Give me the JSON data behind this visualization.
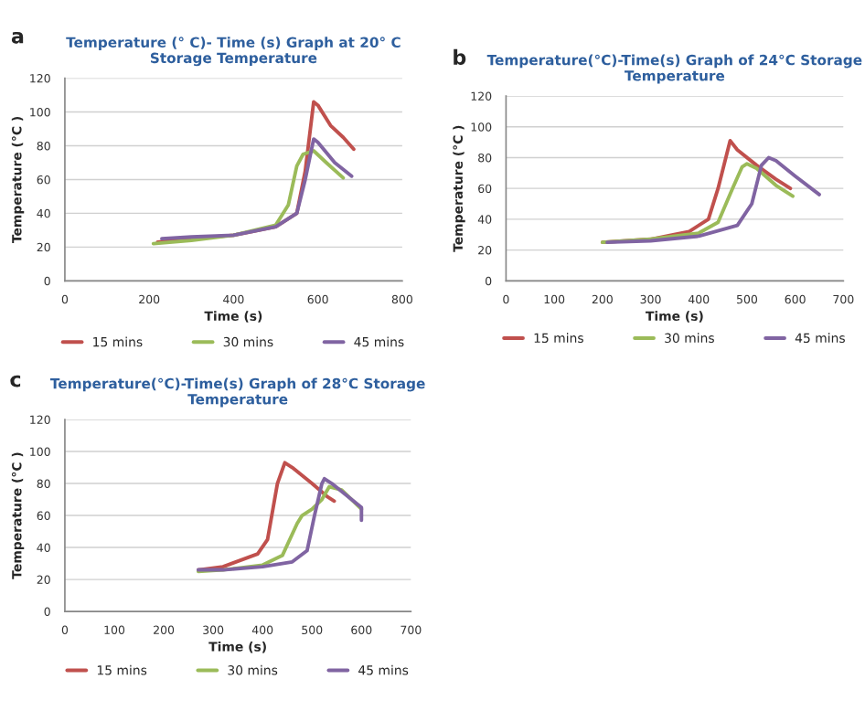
{
  "chart_data": [
    {
      "type": "line",
      "title": "Temperature (° C)- Time (s) Graph at 20° C\nStorage Temperature",
      "xlabel": "Time (s)",
      "ylabel": "Temperature (°C )",
      "annotations": [
        "a"
      ],
      "xlim": [
        0,
        800
      ],
      "xticks": [
        0,
        200,
        400,
        600,
        800
      ],
      "ylim": [
        0,
        120
      ],
      "yticks": [
        0,
        20,
        40,
        60,
        80,
        100,
        120
      ],
      "grid": "y",
      "legend": "bottom",
      "marker": "none",
      "line_style": "solid",
      "series": [
        {
          "name": "15 mins",
          "color": "#c0504d",
          "x": [
            220,
            300,
            400,
            500,
            550,
            570,
            590,
            600,
            630,
            660,
            685
          ],
          "values": [
            23,
            25,
            27,
            32,
            40,
            65,
            106,
            104,
            92,
            85,
            78
          ]
        },
        {
          "name": "30 mins",
          "color": "#9bbb59",
          "x": [
            210,
            300,
            400,
            500,
            530,
            550,
            565,
            590,
            620,
            660
          ],
          "values": [
            22,
            24,
            27,
            33,
            45,
            68,
            75,
            77,
            70,
            61
          ]
        },
        {
          "name": "45 mins",
          "color": "#8064a2",
          "x": [
            230,
            300,
            400,
            500,
            550,
            570,
            590,
            600,
            640,
            680
          ],
          "values": [
            25,
            26,
            27,
            32,
            40,
            60,
            84,
            82,
            70,
            62
          ]
        }
      ]
    },
    {
      "type": "line",
      "title": "Temperature(°C)-Time(s) Graph of 24°C Storage\nTemperature",
      "xlabel": "Time (s)",
      "ylabel": "Temperature (°C )",
      "annotations": [
        "b"
      ],
      "xlim": [
        0,
        700
      ],
      "xticks": [
        0,
        100,
        200,
        300,
        400,
        500,
        600,
        700
      ],
      "ylim": [
        0,
        120
      ],
      "yticks": [
        0,
        20,
        40,
        60,
        80,
        100,
        120
      ],
      "grid": "y",
      "legend": "bottom",
      "marker": "none",
      "line_style": "solid",
      "series": [
        {
          "name": "15 mins",
          "color": "#c0504d",
          "x": [
            200,
            300,
            380,
            420,
            440,
            465,
            480,
            520,
            560,
            590
          ],
          "values": [
            25,
            27,
            32,
            40,
            60,
            91,
            85,
            75,
            66,
            60
          ]
        },
        {
          "name": "30 mins",
          "color": "#9bbb59",
          "x": [
            200,
            300,
            400,
            440,
            470,
            490,
            500,
            520,
            560,
            595
          ],
          "values": [
            25,
            27,
            31,
            38,
            60,
            74,
            76,
            73,
            62,
            55
          ]
        },
        {
          "name": "45 mins",
          "color": "#8064a2",
          "x": [
            210,
            300,
            400,
            480,
            510,
            530,
            545,
            560,
            600,
            650
          ],
          "values": [
            25,
            26,
            29,
            36,
            50,
            75,
            80,
            78,
            68,
            56
          ]
        }
      ]
    },
    {
      "type": "line",
      "title": "Temperature(°C)-Time(s) Graph of 28°C Storage\nTemperature",
      "xlabel": "Time (s)",
      "ylabel": "Temperature (°C )",
      "annotations": [
        "c"
      ],
      "xlim": [
        0,
        700
      ],
      "xticks": [
        0,
        100,
        200,
        300,
        400,
        500,
        600,
        700
      ],
      "ylim": [
        0,
        120
      ],
      "yticks": [
        0,
        20,
        40,
        60,
        80,
        100,
        120
      ],
      "grid": "y",
      "legend": "bottom",
      "marker": "none",
      "line_style": "solid",
      "series": [
        {
          "name": "15 mins",
          "color": "#c0504d",
          "x": [
            270,
            320,
            390,
            410,
            430,
            445,
            460,
            500,
            530,
            545
          ],
          "values": [
            26,
            28,
            36,
            45,
            80,
            93,
            90,
            80,
            72,
            69
          ]
        },
        {
          "name": "30 mins",
          "color": "#9bbb59",
          "x": [
            270,
            320,
            400,
            440,
            470,
            480,
            500,
            520,
            535,
            560,
            600
          ],
          "values": [
            25,
            26,
            29,
            35,
            55,
            60,
            64,
            70,
            78,
            76,
            64
          ]
        },
        {
          "name": "45 mins",
          "color": "#8064a2",
          "x": [
            270,
            320,
            400,
            460,
            490,
            505,
            520,
            525,
            540,
            600,
            600
          ],
          "values": [
            26,
            26,
            28,
            31,
            38,
            60,
            80,
            83,
            80,
            65,
            57
          ]
        }
      ]
    }
  ]
}
